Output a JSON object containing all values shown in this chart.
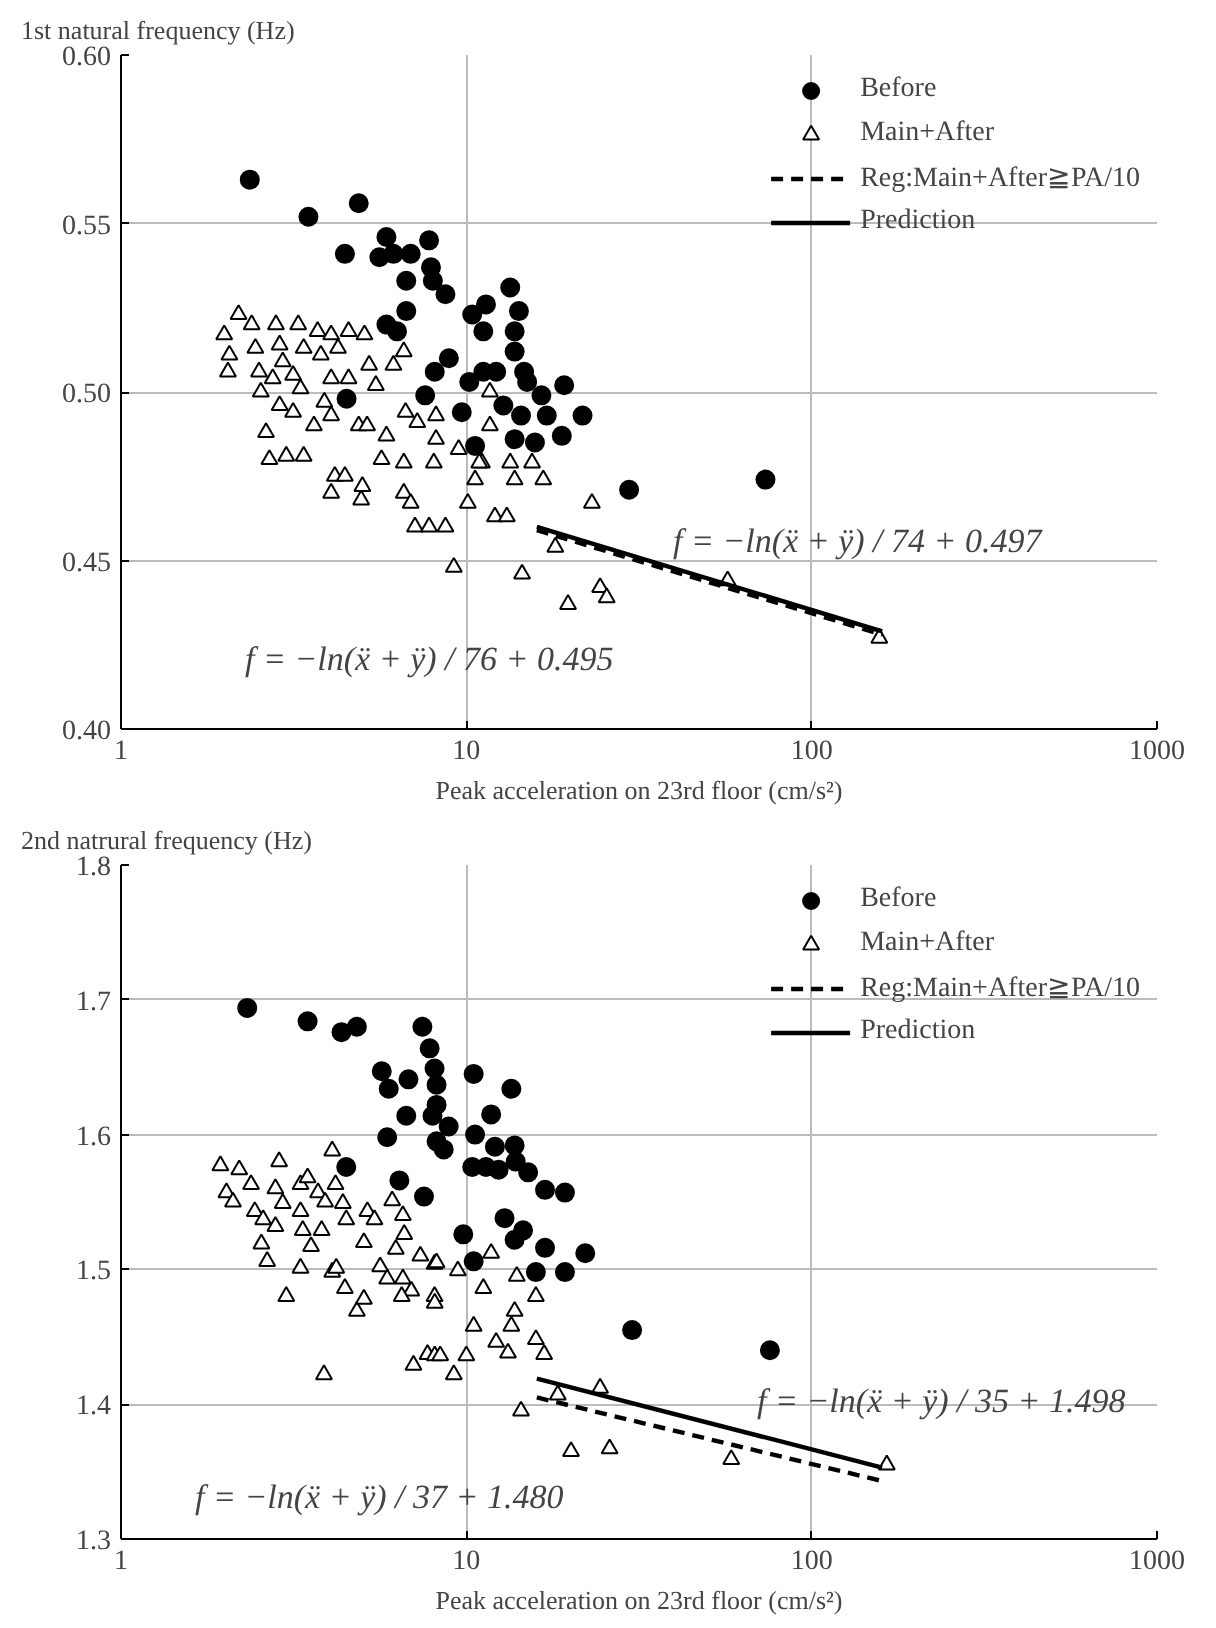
{
  "chart_data": [
    {
      "type": "scatter",
      "title": "1st natural frequency (Hz)",
      "xlabel": "Peak acceleration on 23rd floor (cm/s²)",
      "log": "x",
      "grid": true,
      "legend": "top right",
      "xlim": [
        1,
        1000
      ],
      "xticks": [
        1,
        10,
        100,
        1000
      ],
      "ylim": [
        0.4,
        0.6
      ],
      "yticks": [
        {
          "value": 0.4,
          "label": "0.40"
        },
        {
          "value": 0.45,
          "label": "0.45"
        },
        {
          "value": 0.5,
          "label": "0.50"
        },
        {
          "value": 0.55,
          "label": "0.55"
        },
        {
          "value": 0.6,
          "label": "0.60"
        }
      ],
      "series": [
        {
          "name": "Before",
          "type": "scatter",
          "marker": "circle",
          "color": "#000000",
          "x": [
            2.36,
            3.49,
            4.88,
            4.45,
            5.87,
            5.6,
            6.15,
            6.9,
            7.8,
            7.9,
            6.7,
            8.0,
            8.7,
            6.7,
            5.87,
            6.3,
            10.4,
            11.4,
            11.2,
            13.4,
            14.2,
            13.8,
            8.9,
            8.1,
            10.2,
            11.2,
            12.2,
            13.8,
            14.7,
            15.0,
            16.5,
            19.2,
            7.6,
            4.5,
            9.7,
            12.8,
            14.4,
            17.1,
            21.7,
            10.6,
            13.8,
            15.8,
            18.9,
            29.6,
            73.5
          ],
          "values": [
            0.563,
            0.552,
            0.556,
            0.541,
            0.546,
            0.54,
            0.541,
            0.541,
            0.545,
            0.537,
            0.533,
            0.533,
            0.529,
            0.524,
            0.52,
            0.518,
            0.523,
            0.526,
            0.518,
            0.531,
            0.524,
            0.518,
            0.51,
            0.506,
            0.503,
            0.506,
            0.506,
            0.512,
            0.506,
            0.503,
            0.499,
            0.502,
            0.499,
            0.498,
            0.494,
            0.496,
            0.493,
            0.493,
            0.493,
            0.484,
            0.486,
            0.485,
            0.487,
            0.471,
            0.474
          ]
        },
        {
          "name": "Main+After",
          "type": "scatter",
          "marker": "triangle",
          "color": "#000000",
          "x": [
            1.99,
            2.19,
            2.06,
            2.04,
            2.39,
            2.45,
            2.51,
            2.54,
            2.81,
            2.88,
            2.94,
            2.75,
            2.88,
            3.26,
            3.38,
            3.15,
            3.31,
            3.71,
            4.06,
            3.79,
            4.25,
            4.56,
            5.07,
            4.06,
            4.56,
            5.23,
            5.47,
            6.15,
            6.59,
            3.88,
            3.62,
            3.15,
            4.06,
            2.63,
            2.69,
            3.01,
            3.38,
            4.88,
            5.16,
            5.87,
            6.67,
            7.21,
            8.17,
            8.17,
            5.68,
            6.59,
            8.05,
            9.5,
            11.1,
            10.6,
            13.4,
            13.8,
            15.5,
            16.7,
            11.7,
            4.16,
            4.06,
            4.45,
            5.0,
            4.96,
            6.59,
            6.9,
            7.1,
            7.8,
            8.7,
            10.1,
            12.1,
            13.1,
            9.2,
            14.5,
            23.1,
            19.7,
            24.4,
            25.5,
            18.1,
            11.7,
            10.9,
            57.1,
            157
          ],
          "values": [
            0.517,
            0.523,
            0.511,
            0.506,
            0.52,
            0.513,
            0.506,
            0.5,
            0.52,
            0.514,
            0.509,
            0.504,
            0.496,
            0.52,
            0.513,
            0.505,
            0.501,
            0.518,
            0.517,
            0.511,
            0.513,
            0.518,
            0.517,
            0.504,
            0.504,
            0.508,
            0.502,
            0.508,
            0.512,
            0.497,
            0.49,
            0.494,
            0.493,
            0.488,
            0.48,
            0.481,
            0.481,
            0.49,
            0.49,
            0.487,
            0.494,
            0.491,
            0.493,
            0.486,
            0.48,
            0.479,
            0.479,
            0.483,
            0.479,
            0.474,
            0.479,
            0.474,
            0.479,
            0.474,
            0.49,
            0.475,
            0.47,
            0.475,
            0.472,
            0.468,
            0.47,
            0.467,
            0.46,
            0.46,
            0.46,
            0.467,
            0.463,
            0.463,
            0.448,
            0.446,
            0.467,
            0.437,
            0.442,
            0.439,
            0.454,
            0.5,
            0.479,
            0.444,
            0.427
          ]
        },
        {
          "name": "Reg:Main+After≧PA/10",
          "type": "line",
          "line_style": "dashed",
          "color": "#000000",
          "x": [
            16,
            160
          ],
          "values": [
            0.459,
            0.428
          ]
        },
        {
          "name": "Prediction",
          "type": "line",
          "line_style": "solid",
          "color": "#000000",
          "x": [
            16,
            160
          ],
          "values": [
            0.46,
            0.429
          ]
        }
      ],
      "annotations": [
        "f = −ln(ẍ + ÿ) / 74 + 0.497",
        "f = −ln(ẍ + ÿ) / 76 + 0.495"
      ]
    },
    {
      "type": "scatter",
      "title": "2nd natrural frequency (Hz)",
      "xlabel": "Peak acceleration on 23rd floor (cm/s²)",
      "log": "x",
      "grid": true,
      "legend": "top right",
      "xlim": [
        1,
        1000
      ],
      "xticks": [
        1,
        10,
        100,
        1000
      ],
      "ylim": [
        1.3,
        1.8
      ],
      "yticks": [
        1.3,
        1.4,
        1.5,
        1.6,
        1.7,
        1.8
      ],
      "series": [
        {
          "name": "Before",
          "type": "scatter",
          "marker": "circle",
          "color": "#000000",
          "x": [
            2.32,
            3.47,
            4.35,
            4.82,
            7.46,
            7.83,
            8.09,
            5.69,
            5.96,
            6.8,
            8.2,
            8.2,
            7.98,
            8.89,
            6.7,
            5.9,
            8.2,
            8.6,
            10.5,
            11.8,
            13.5,
            10.6,
            12.1,
            13.8,
            10.4,
            11.4,
            12.4,
            13.9,
            15.1,
            16.9,
            19.3,
            4.49,
            6.4,
            7.54,
            12.9,
            14.6,
            13.8,
            9.8,
            16.9,
            22.1,
            10.5,
            15.9,
            19.3,
            30.2,
            75.7
          ],
          "values": [
            1.694,
            1.684,
            1.676,
            1.68,
            1.68,
            1.664,
            1.649,
            1.647,
            1.634,
            1.641,
            1.637,
            1.622,
            1.614,
            1.606,
            1.614,
            1.598,
            1.595,
            1.589,
            1.645,
            1.615,
            1.634,
            1.6,
            1.591,
            1.592,
            1.576,
            1.576,
            1.574,
            1.58,
            1.572,
            1.559,
            1.557,
            1.576,
            1.566,
            1.554,
            1.538,
            1.529,
            1.522,
            1.526,
            1.516,
            1.512,
            1.506,
            1.498,
            1.498,
            1.455,
            1.44
          ]
        },
        {
          "name": "Main+After",
          "type": "scatter",
          "marker": "triangle",
          "color": "#000000",
          "x": [
            1.94,
            2.2,
            2.02,
            2.11,
            2.38,
            2.44,
            2.58,
            2.87,
            2.8,
            2.94,
            2.8,
            2.55,
            2.65,
            3.01,
            3.31,
            3.47,
            3.72,
            3.31,
            3.36,
            3.55,
            3.31,
            4.09,
            4.18,
            3.9,
            3.81,
            4.39,
            4.49,
            4.09,
            4.2,
            4.45,
            4.82,
            5.05,
            5.17,
            5.05,
            5.42,
            6.1,
            6.55,
            6.61,
            6.25,
            5.63,
            6.55,
            5.9,
            6.93,
            6.5,
            7.36,
            8.09,
            8.2,
            8.09,
            8.1,
            9.45,
            11.2,
            11.8,
            10.5,
            14.0,
            15.9,
            13.8,
            13.5,
            12.2,
            13.2,
            15.9,
            16.8,
            7.72,
            8.1,
            8.4,
            7.03,
            9.2,
            10.0,
            3.87,
            14.4,
            18.4,
            24.4,
            20.1,
            26.0,
            58.5,
            165
          ],
          "values": [
            1.577,
            1.574,
            1.557,
            1.55,
            1.563,
            1.543,
            1.537,
            1.58,
            1.56,
            1.549,
            1.532,
            1.519,
            1.506,
            1.48,
            1.563,
            1.568,
            1.557,
            1.543,
            1.529,
            1.517,
            1.501,
            1.588,
            1.563,
            1.55,
            1.529,
            1.549,
            1.537,
            1.498,
            1.501,
            1.486,
            1.469,
            1.478,
            1.543,
            1.52,
            1.537,
            1.551,
            1.54,
            1.526,
            1.515,
            1.502,
            1.493,
            1.493,
            1.484,
            1.48,
            1.51,
            1.504,
            1.505,
            1.48,
            1.475,
            1.499,
            1.486,
            1.512,
            1.458,
            1.495,
            1.48,
            1.469,
            1.458,
            1.446,
            1.438,
            1.448,
            1.437,
            1.437,
            1.436,
            1.436,
            1.429,
            1.422,
            1.436,
            1.422,
            1.395,
            1.407,
            1.412,
            1.365,
            1.367,
            1.359,
            1.355
          ]
        },
        {
          "name": "Reg:Main+After≧PA/10",
          "type": "line",
          "line_style": "dashed",
          "color": "#000000",
          "x": [
            16,
            160
          ],
          "values": [
            1.405,
            1.343
          ]
        },
        {
          "name": "Prediction",
          "type": "line",
          "line_style": "solid",
          "color": "#000000",
          "x": [
            16,
            160
          ],
          "values": [
            1.419,
            1.353
          ]
        }
      ],
      "annotations": [
        "f = −ln(ẍ + ÿ) / 35 + 1.498",
        "f = −ln(ẍ + ÿ) / 37 + 1.480"
      ]
    }
  ]
}
